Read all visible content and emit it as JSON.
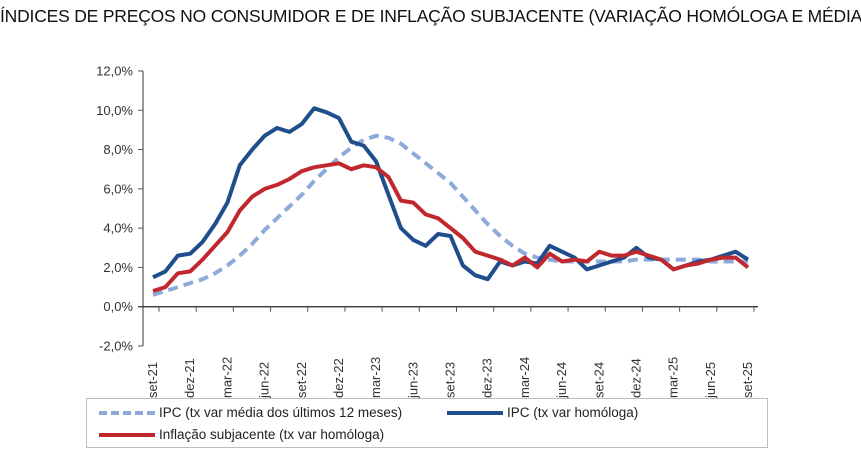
{
  "chart_data": {
    "type": "line",
    "title": "ÍNDICES DE PREÇOS NO CONSUMIDOR E DE INFLAÇÃO SUBJACENTE (VARIAÇÃO HOMÓLOGA E MÉDIA)",
    "xlabel": "",
    "ylabel": "",
    "ylim": [
      -2.0,
      12.0
    ],
    "yticks": [
      "12,0%",
      "10,0%",
      "8,0%",
      "6,0%",
      "4,0%",
      "2,0%",
      "0,0%",
      "-2,0%"
    ],
    "ytick_values": [
      12,
      10,
      8,
      6,
      4,
      2,
      0,
      -2
    ],
    "x_tick_labels": [
      "set-21",
      "dez-21",
      "mar-22",
      "jun-22",
      "set-22",
      "dez-22",
      "mar-23",
      "jun-23",
      "set-23",
      "dez-23",
      "mar-24",
      "jun-24",
      "set-24",
      "dez-24",
      "mar-25",
      "jun-25",
      "set-25"
    ],
    "x_tick_every_months": 3,
    "x_start": "set-21",
    "x_end": "set-25",
    "grid": false,
    "legend_position": "bottom",
    "series": [
      {
        "name": "IPC (tx var média dos últimos 12 meses)",
        "color": "#8EAADB",
        "style": "dashed",
        "values": [
          0.6,
          0.8,
          1.0,
          1.2,
          1.4,
          1.7,
          2.1,
          2.6,
          3.2,
          3.9,
          4.5,
          5.1,
          5.7,
          6.4,
          7.0,
          7.6,
          8.1,
          8.5,
          8.7,
          8.6,
          8.3,
          7.8,
          7.3,
          6.8,
          6.3,
          5.6,
          4.9,
          4.2,
          3.6,
          3.1,
          2.7,
          2.5,
          2.4,
          2.3,
          2.3,
          2.3,
          2.3,
          2.3,
          2.3,
          2.4,
          2.4,
          2.4,
          2.4,
          2.4,
          2.4,
          2.3,
          2.3,
          2.3,
          2.3
        ]
      },
      {
        "name": "IPC (tx var homóloga)",
        "color": "#1F4E8C",
        "style": "solid",
        "values": [
          1.5,
          1.8,
          2.6,
          2.7,
          3.3,
          4.2,
          5.3,
          7.2,
          8.0,
          8.7,
          9.1,
          8.9,
          9.3,
          10.1,
          9.9,
          9.6,
          8.4,
          8.2,
          7.4,
          5.7,
          4.0,
          3.4,
          3.1,
          3.7,
          3.6,
          2.1,
          1.6,
          1.4,
          2.3,
          2.1,
          2.3,
          2.2,
          3.1,
          2.8,
          2.5,
          1.9,
          2.1,
          2.3,
          2.5,
          3.0,
          2.5,
          2.4,
          1.9,
          2.1,
          2.3,
          2.4,
          2.6,
          2.8,
          2.4
        ]
      },
      {
        "name": "Inflação subjacente (tx var homóloga)",
        "color": "#C0282D",
        "style": "solid",
        "values": [
          0.8,
          1.0,
          1.7,
          1.8,
          2.4,
          3.1,
          3.8,
          4.9,
          5.6,
          6.0,
          6.2,
          6.5,
          6.9,
          7.1,
          7.2,
          7.3,
          7.0,
          7.2,
          7.1,
          6.6,
          5.4,
          5.3,
          4.7,
          4.5,
          4.0,
          3.5,
          2.8,
          2.6,
          2.4,
          2.1,
          2.5,
          2.0,
          2.7,
          2.3,
          2.4,
          2.3,
          2.8,
          2.6,
          2.6,
          2.8,
          2.6,
          2.4,
          1.9,
          2.1,
          2.2,
          2.4,
          2.5,
          2.5,
          2.0
        ]
      }
    ]
  },
  "legend": {
    "items": [
      {
        "label": "IPC (tx var média dos últimos 12 meses)"
      },
      {
        "label": "IPC (tx var homóloga)"
      },
      {
        "label": "Inflação subjacente (tx var homóloga)"
      }
    ]
  }
}
